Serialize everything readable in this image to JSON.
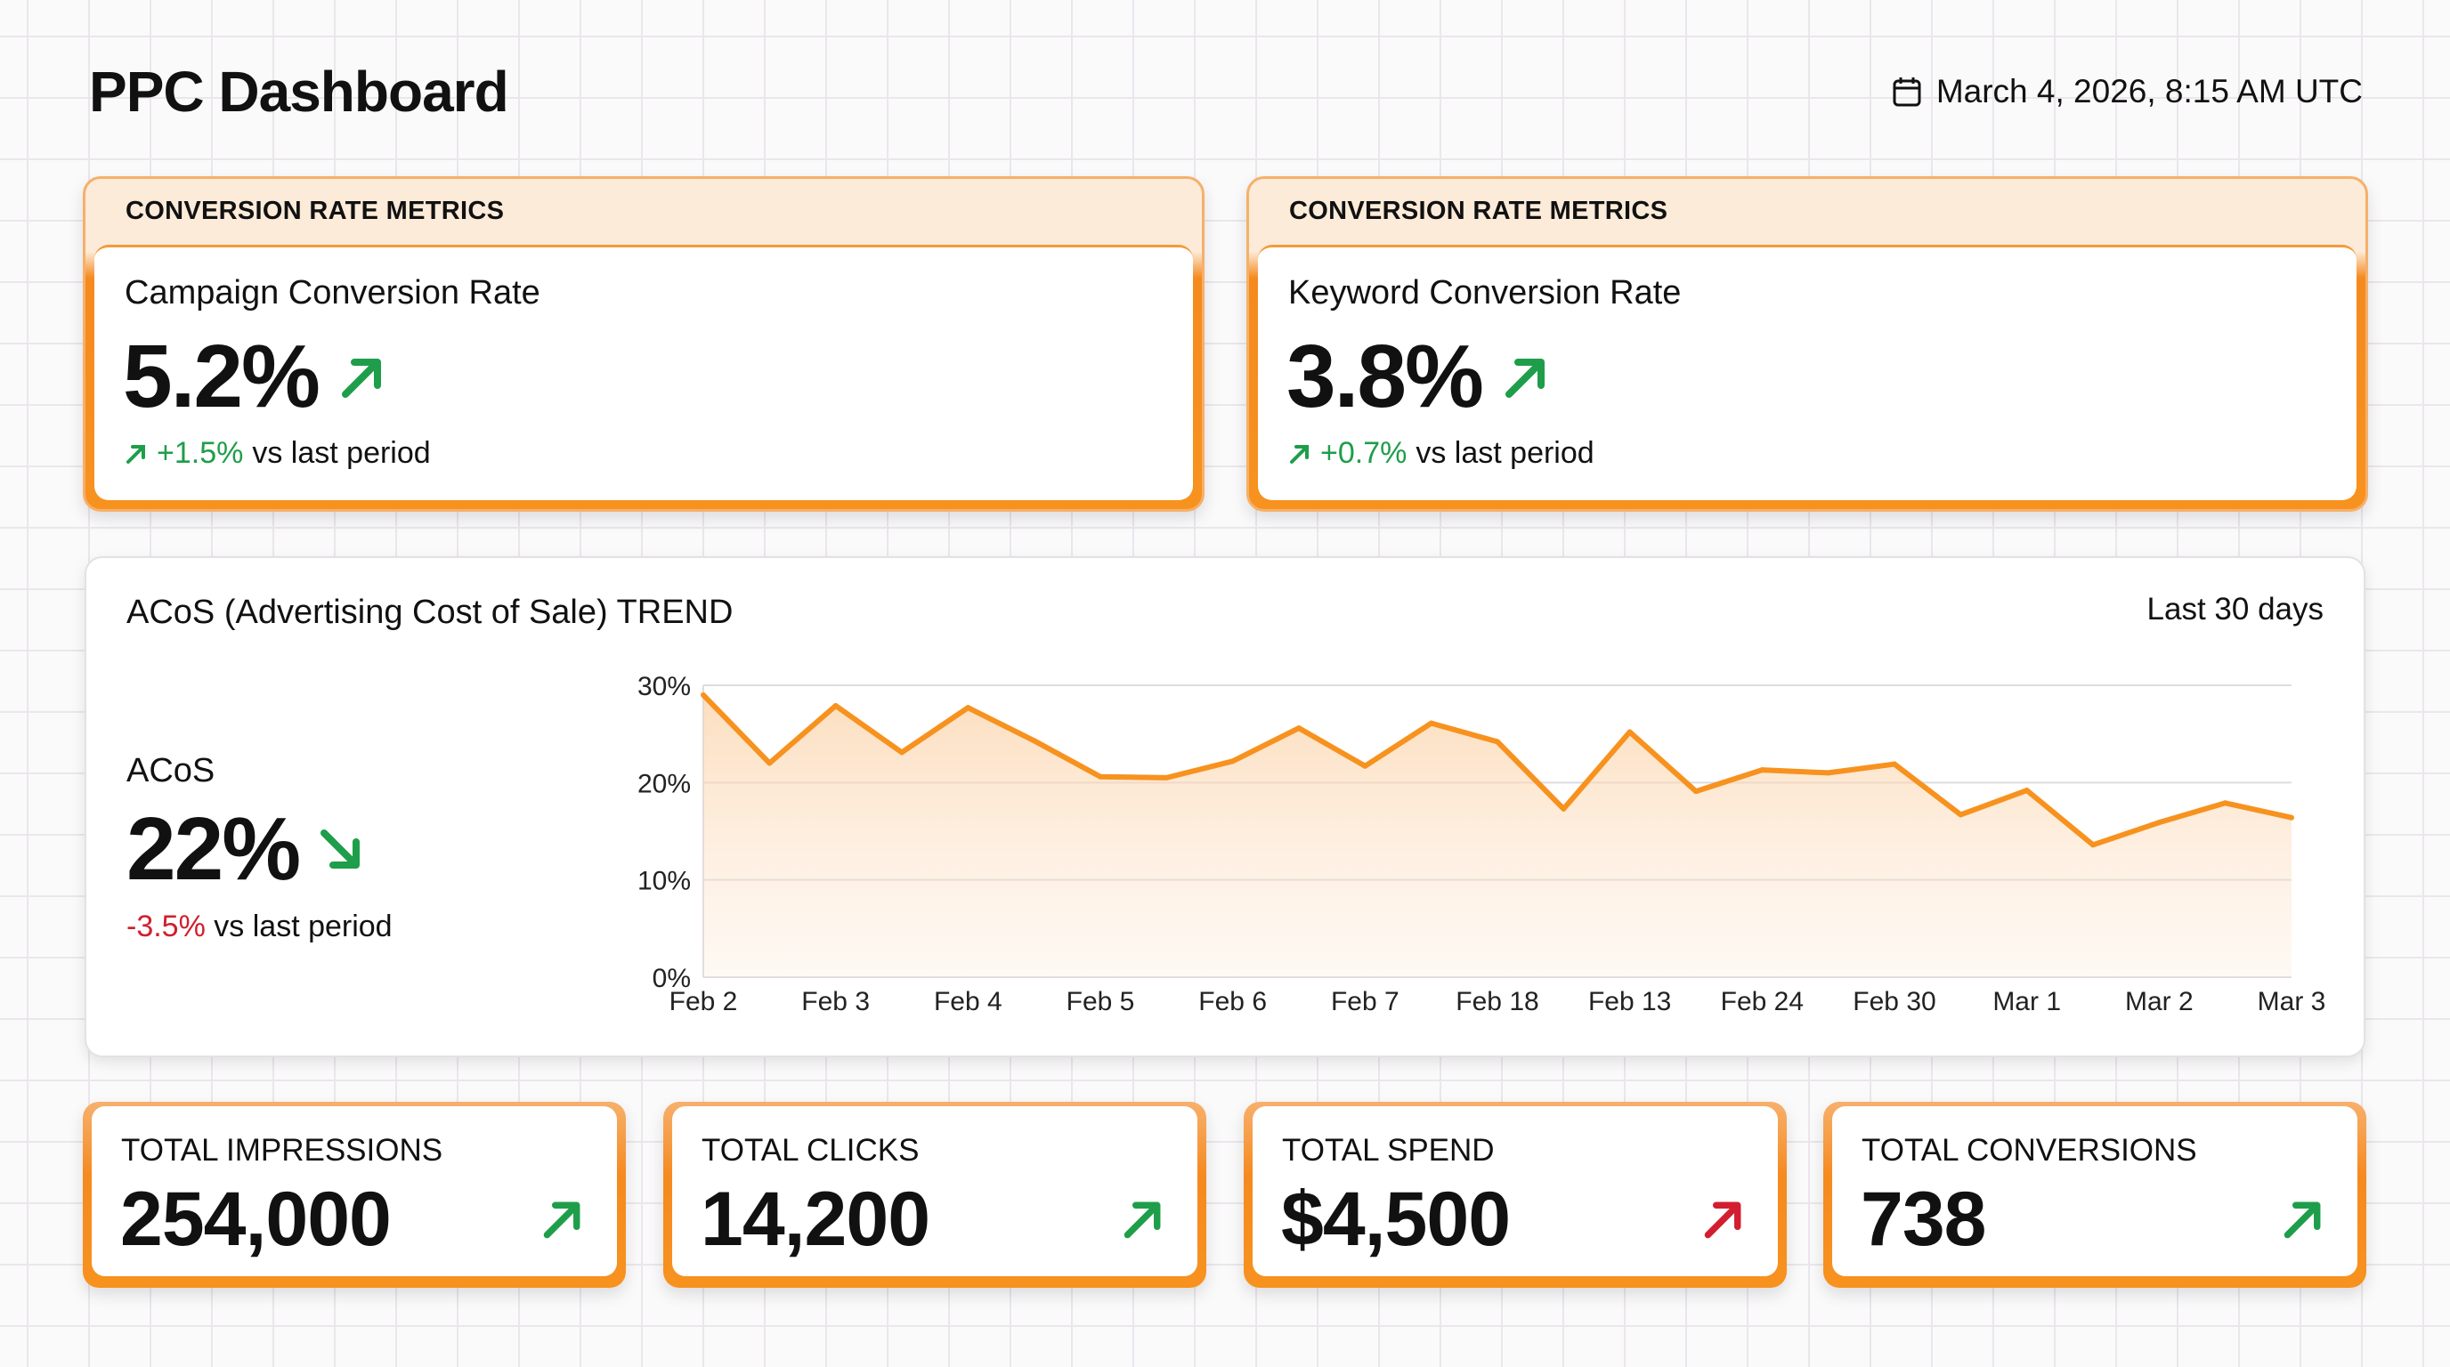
{
  "header": {
    "title": "PPC Dashboard",
    "date": "March 4, 2026, 8:15 AM UTC",
    "date_icon": "calendar-icon"
  },
  "metrics": [
    {
      "section": "CONVERSION RATE METRICS",
      "label": "Campaign Conversion Rate",
      "value": "5.2%",
      "change": "+1.5%",
      "suffix": "vs last period",
      "trend": "up"
    },
    {
      "section": "CONVERSION RATE METRICS",
      "label": "Keyword Conversion Rate",
      "value": "3.8%",
      "change": "+0.7%",
      "suffix": "vs last period",
      "trend": "up"
    }
  ],
  "acos": {
    "title": "ACoS (Advertising Cost of Sale) TREND",
    "range": "Last 30 days",
    "label": "ACoS",
    "value": "22%",
    "change": "-3.5%",
    "suffix": "vs last period",
    "trend": "down"
  },
  "kpis": [
    {
      "label": "TOTAL IMPRESSIONS",
      "value": "254,000",
      "trend": "up",
      "color": "#1e9e4a"
    },
    {
      "label": "TOTAL CLICKS",
      "value": "14,200",
      "trend": "up",
      "color": "#1e9e4a"
    },
    {
      "label": "TOTAL SPEND",
      "value": "$4,500",
      "trend": "up",
      "color": "#d11f2f"
    },
    {
      "label": "TOTAL CONVERSIONS",
      "value": "738",
      "trend": "up",
      "color": "#1e9e4a"
    }
  ],
  "colors": {
    "accent": "#f7921f",
    "positive": "#1e9e4a",
    "negative": "#d11f2f",
    "header_band": "#fcebd9"
  },
  "chart_data": {
    "type": "area",
    "xlabel": "",
    "ylabel": "",
    "x_tick_labels": [
      "Feb 2",
      "Feb 3",
      "Feb 4",
      "Feb 5",
      "Feb 6",
      "Feb 7",
      "Feb 18",
      "Feb 13",
      "Feb 24",
      "Feb 30",
      "Mar 1",
      "Mar 2",
      "Mar 3"
    ],
    "y_tick_labels": [
      "0%",
      "10%",
      "20%",
      "30%"
    ],
    "ylim": [
      0,
      30
    ],
    "grid": true,
    "values": [
      29.0,
      22.0,
      27.9,
      23.1,
      27.7,
      24.3,
      20.6,
      20.5,
      22.2,
      25.6,
      21.7,
      26.1,
      24.2,
      17.3,
      25.2,
      19.1,
      21.3,
      21.0,
      21.9,
      16.7,
      19.2,
      13.6,
      15.9,
      17.9,
      16.4
    ],
    "line_color": "#f7921f"
  }
}
